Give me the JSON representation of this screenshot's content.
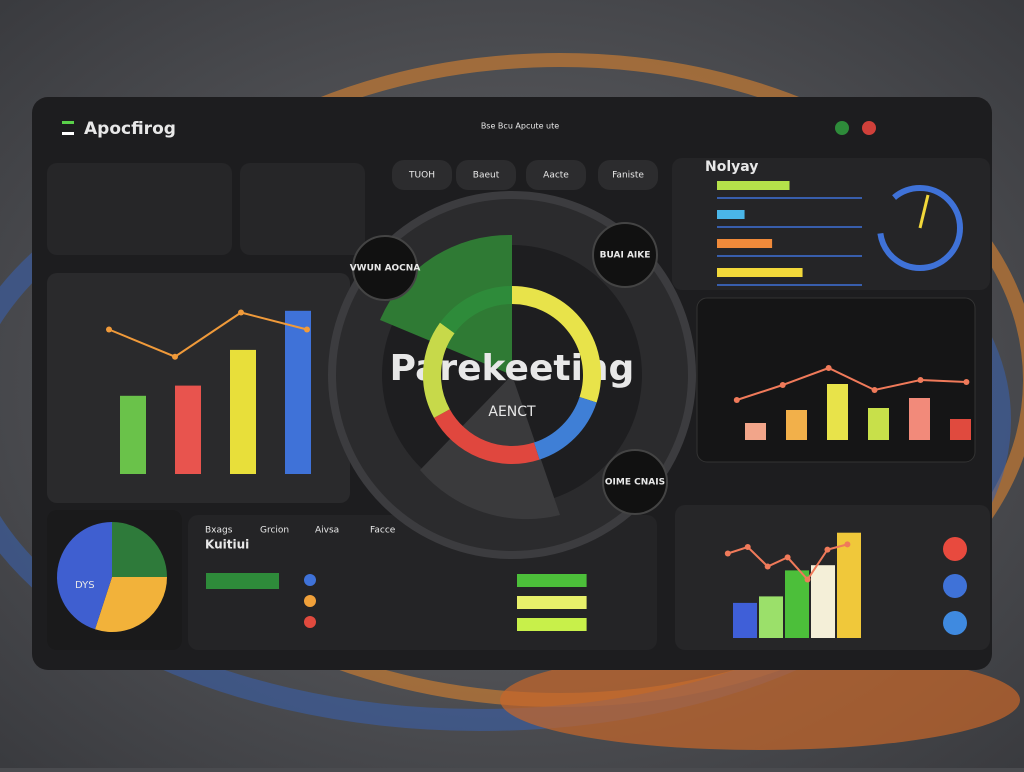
{
  "header": {
    "title": "Apocfirog",
    "nav": "Bse Bcu  Apcute ute"
  },
  "tabs": [
    "TUOH",
    "Baeut",
    "Aacte",
    "Faniste"
  ],
  "center": {
    "title": "Parekeeting",
    "subtitle": "AENCT",
    "badges": [
      "VWUN AOCNA",
      "BUAI AIKE",
      "OIME CNAIS"
    ],
    "donut": {
      "values": [
        30,
        15,
        22,
        18,
        15
      ],
      "colors": [
        "#e8e34a",
        "#3f7fd6",
        "#e0473e",
        "#c7d94a",
        "#2e8b3a"
      ]
    }
  },
  "left_chart": {
    "bars": [
      46,
      52,
      73,
      96
    ],
    "colors": [
      "#6ac24a",
      "#e8544e",
      "#e8df3a",
      "#3f72d8"
    ],
    "line": [
      85,
      69,
      95,
      85
    ],
    "line_color": "#f09a3a"
  },
  "hbar": {
    "title": "Nolyay",
    "values": [
      50,
      19,
      38,
      59
    ],
    "colors": [
      "#b5e14a",
      "#4ab6e8",
      "#f08a3a",
      "#f2d83a"
    ]
  },
  "mid_right": {
    "bars": [
      17,
      30,
      56,
      32,
      42,
      21
    ],
    "colors": [
      "#f2a58a",
      "#f2b04a",
      "#e8e34a",
      "#c8e04a",
      "#f28a7a",
      "#e04a3e"
    ],
    "line": [
      40,
      55,
      72,
      50,
      60,
      58
    ]
  },
  "bottom_right": {
    "bars": [
      27,
      32,
      52,
      56,
      81
    ],
    "colors": [
      "#3f5fd8",
      "#9be06a",
      "#4cbf3a",
      "#f4efd8",
      "#f0c83a"
    ],
    "line": [
      65,
      70,
      55,
      62,
      45,
      68,
      72
    ],
    "dots": [
      "#e84a3e",
      "#3f72d8",
      "#3f8ae0"
    ]
  },
  "pie": {
    "label": "DYS",
    "values": [
      25,
      30,
      45
    ],
    "colors": [
      "#2e7a3a",
      "#f2b23a",
      "#3f5fd0"
    ]
  },
  "bottom_center": {
    "title": "Kuitiui",
    "headings": [
      "Bxags",
      "Grcion",
      "Aivsa",
      "Facce"
    ],
    "values": [
      58,
      58,
      58
    ]
  }
}
